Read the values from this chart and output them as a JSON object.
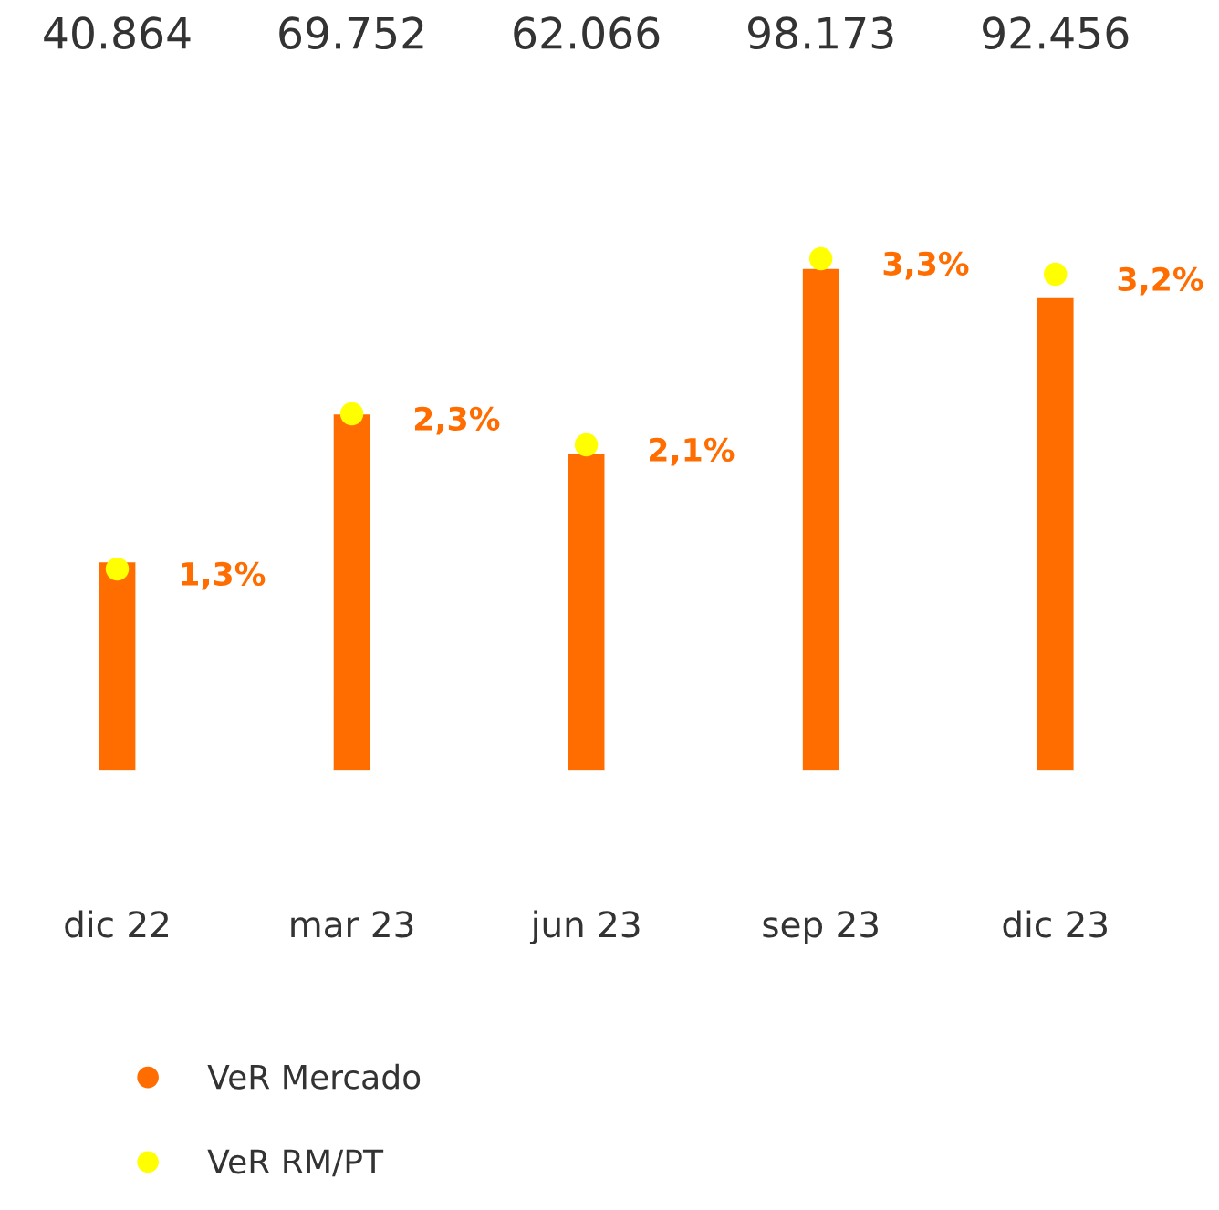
{
  "chart_data": {
    "type": "bar",
    "categories": [
      "dic 22",
      "mar 23",
      "jun 23",
      "sep 23",
      "dic 23"
    ],
    "series": [
      {
        "name": "VeR Mercado",
        "color": "#ff6d00",
        "values": [
          40864,
          69752,
          62066,
          98173,
          92456
        ],
        "value_labels": [
          "40.864",
          "69.752",
          "62.066",
          "98.173",
          "92.456"
        ]
      },
      {
        "name": "VeR RM/PT",
        "type": "scatter",
        "axis": "y2",
        "color": "#ffff00",
        "values": [
          1.3,
          2.3,
          2.1,
          3.3,
          3.2
        ],
        "value_labels": [
          "1,3%",
          "2,3%",
          "2,1%",
          "3,3%",
          "3,2%"
        ]
      }
    ],
    "tick_labels": "x",
    "grid": false,
    "legend": "bottom left",
    "marker": "circle"
  }
}
